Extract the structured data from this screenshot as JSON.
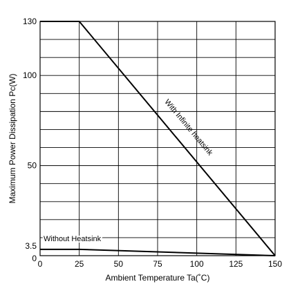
{
  "chart_data": {
    "type": "line",
    "title": "",
    "xlabel": "Ambient Temperature Ta(˚C)",
    "ylabel": "Maximum Power Dissipation Pc(W)",
    "xlim": [
      0,
      150
    ],
    "ylim": [
      0,
      130
    ],
    "x_ticks": [
      0,
      25,
      50,
      75,
      100,
      125,
      150
    ],
    "x_tick_labels": [
      "0",
      "25",
      "50",
      "75",
      "100",
      "125",
      "150"
    ],
    "y_ticks": [
      0,
      3.5,
      50,
      100,
      130
    ],
    "y_tick_labels": [
      "0",
      "3.5",
      "50",
      "100",
      "130"
    ],
    "y_grid_step": 10,
    "grid": true,
    "series": [
      {
        "name": "With Infinite heatsink",
        "x": [
          0,
          25,
          150
        ],
        "y": [
          130,
          130,
          0
        ]
      },
      {
        "name": "Without Heatsink",
        "x": [
          0,
          25,
          150
        ],
        "y": [
          3.5,
          3.5,
          0
        ]
      }
    ],
    "colors": {
      "line": "#000000",
      "grid": "#000000",
      "background": "#ffffff"
    }
  }
}
